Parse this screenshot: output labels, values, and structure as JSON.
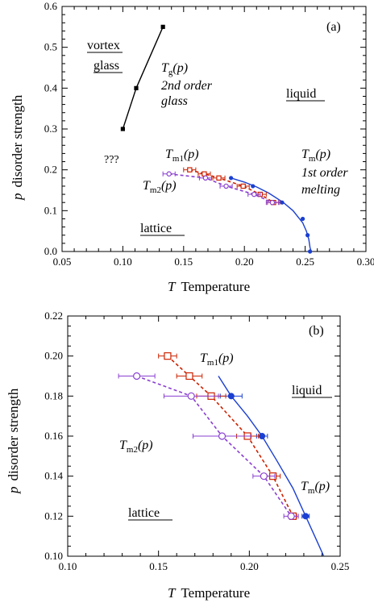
{
  "chart_data": [
    {
      "panel": "(a)",
      "type": "line",
      "xlabel_symbol": "T",
      "xlabel": "Temperature",
      "ylabel_symbol": "p",
      "ylabel": "disorder strength",
      "xlim": [
        0.05,
        0.3
      ],
      "ylim": [
        0.0,
        0.6
      ],
      "xticks": [
        "0.05",
        "0.10",
        "0.15",
        "0.20",
        "0.25",
        "0.30"
      ],
      "yticks": [
        "0.0",
        "0.1",
        "0.2",
        "0.3",
        "0.4",
        "0.5",
        "0.6"
      ],
      "series": [
        {
          "key": "tg",
          "color": "#000000",
          "marker": "square-filled",
          "dashed": false,
          "points": [
            [
              0.1,
              0.3
            ],
            [
              0.111,
              0.4
            ],
            [
              0.133,
              0.55
            ]
          ]
        },
        {
          "key": "tm",
          "color": "#1a3fd1",
          "marker": "circle-filled",
          "dashed": false,
          "curve": [
            [
              0.189,
              0.18
            ],
            [
              0.2,
              0.17
            ],
            [
              0.21,
              0.158
            ],
            [
              0.22,
              0.143
            ],
            [
              0.232,
              0.12
            ],
            [
              0.24,
              0.1
            ],
            [
              0.248,
              0.07
            ],
            [
              0.251,
              0.05
            ],
            [
              0.253,
              0.03
            ],
            [
              0.254,
              0.01
            ],
            [
              0.255,
              0.0
            ]
          ],
          "points": [
            [
              0.189,
              0.18
            ],
            [
              0.207,
              0.16
            ],
            [
              0.231,
              0.12
            ],
            [
              0.248,
              0.08
            ],
            [
              0.252,
              0.04
            ],
            [
              0.254,
              0.0
            ]
          ]
        },
        {
          "key": "tm1",
          "color": "#cc2200",
          "marker": "square-open",
          "dashed": true,
          "points": [
            [
              0.155,
              0.2
            ],
            [
              0.167,
              0.19
            ],
            [
              0.179,
              0.18
            ],
            [
              0.199,
              0.16
            ],
            [
              0.213,
              0.14
            ],
            [
              0.224,
              0.12
            ]
          ]
        },
        {
          "key": "tm2",
          "color": "#8a3fd0",
          "marker": "circle-open",
          "dashed": true,
          "points": [
            [
              0.138,
              0.19
            ],
            [
              0.168,
              0.18
            ],
            [
              0.185,
              0.16
            ],
            [
              0.208,
              0.14
            ],
            [
              0.223,
              0.12
            ]
          ]
        }
      ],
      "annotations": {
        "vortex": "vortex",
        "glass": "glass",
        "tg_label": "T",
        "tg_sub": "g",
        "tg_arg": "(p)",
        "tg_desc1": "2nd order",
        "tg_desc2": "glass",
        "liquid": "liquid",
        "unknown": "???",
        "tm1_label": "T",
        "tm1_sub": "m1",
        "tm1_arg": "(p)",
        "tm2_label": "T",
        "tm2_sub": "m2",
        "tm2_arg": "(p)",
        "tm_label": "T",
        "tm_sub": "m",
        "tm_arg": "(p)",
        "tm_desc1": "1st order",
        "tm_desc2": "melting",
        "lattice": "lattice"
      }
    },
    {
      "panel": "(b)",
      "type": "line",
      "xlabel_symbol": "T",
      "xlabel": "Temperature",
      "ylabel_symbol": "p",
      "ylabel": "disorder strength",
      "xlim": [
        0.1,
        0.25
      ],
      "ylim": [
        0.1,
        0.22
      ],
      "xticks": [
        "0.10",
        "0.15",
        "0.20",
        "0.25"
      ],
      "yticks": [
        "0.10",
        "0.12",
        "0.14",
        "0.16",
        "0.18",
        "0.20",
        "0.22"
      ],
      "series": [
        {
          "key": "tm",
          "color": "#1a3fd1",
          "marker": "circle-filled",
          "dashed": false,
          "curve": [
            [
              0.183,
              0.19
            ],
            [
              0.19,
              0.18
            ],
            [
              0.199,
              0.17
            ],
            [
              0.207,
              0.16
            ],
            [
              0.215,
              0.148
            ],
            [
              0.224,
              0.134
            ],
            [
              0.231,
              0.12
            ],
            [
              0.237,
              0.108
            ],
            [
              0.241,
              0.1
            ]
          ],
          "points": [
            [
              0.19,
              0.18,
              0.006
            ],
            [
              0.207,
              0.16,
              0.003
            ],
            [
              0.231,
              0.12,
              0.002
            ]
          ]
        },
        {
          "key": "tm1",
          "color": "#cc2200",
          "marker": "square-open",
          "dashed": true,
          "points": [
            [
              0.155,
              0.2,
              0.005
            ],
            [
              0.167,
              0.19,
              0.007
            ],
            [
              0.179,
              0.18,
              0.008
            ],
            [
              0.199,
              0.16,
              0.006
            ],
            [
              0.213,
              0.14,
              0.004
            ],
            [
              0.224,
              0.12,
              0.002
            ]
          ]
        },
        {
          "key": "tm2",
          "color": "#8a3fd0",
          "marker": "circle-open",
          "dashed": true,
          "points": [
            [
              0.138,
              0.19,
              0.01
            ],
            [
              0.168,
              0.18,
              0.015
            ],
            [
              0.185,
              0.16,
              0.016
            ],
            [
              0.208,
              0.14,
              0.006
            ],
            [
              0.223,
              0.12,
              0.004
            ]
          ]
        }
      ],
      "annotations": {
        "tm1_label": "T",
        "tm1_sub": "m1",
        "tm1_arg": "(p)",
        "tm2_label": "T",
        "tm2_sub": "m2",
        "tm2_arg": "(p)",
        "tm_label": "T",
        "tm_sub": "m",
        "tm_arg": "(p)",
        "liquid": "liquid",
        "lattice": "lattice"
      }
    }
  ]
}
